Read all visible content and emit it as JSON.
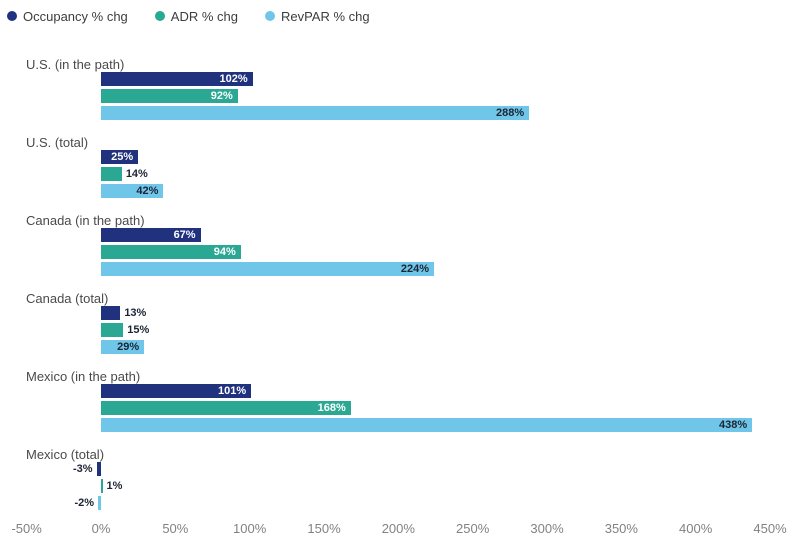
{
  "legend": {
    "items": [
      {
        "label": "Occupancy % chg",
        "color": "#20317d"
      },
      {
        "label": "ADR % chg",
        "color": "#2aa893"
      },
      {
        "label": "RevPAR % chg",
        "color": "#6fc6e9"
      }
    ]
  },
  "chart_data": {
    "type": "bar",
    "orientation": "horizontal",
    "title": "",
    "xlabel": "",
    "ylabel": "",
    "categories": [
      "U.S. (in the path)",
      "U.S. (total)",
      "Canada (in the path)",
      "Canada (total)",
      "Mexico (in the path)",
      "Mexico (total)"
    ],
    "series": [
      {
        "name": "Occupancy % chg",
        "color": "#20317d",
        "values": [
          102,
          25,
          67,
          13,
          101,
          -3
        ]
      },
      {
        "name": "ADR % chg",
        "color": "#2aa893",
        "values": [
          92,
          14,
          94,
          15,
          168,
          1
        ]
      },
      {
        "name": "RevPAR % chg",
        "color": "#6fc6e9",
        "values": [
          288,
          42,
          224,
          29,
          438,
          -2
        ]
      }
    ],
    "value_label_suffix": "%",
    "xlim": [
      -50,
      450
    ],
    "x_ticks": [
      -50,
      0,
      50,
      100,
      150,
      200,
      250,
      300,
      350,
      400,
      450
    ],
    "x_tick_labels": [
      "-50%",
      "0%",
      "50%",
      "100%",
      "150%",
      "200%",
      "250%",
      "300%",
      "350%",
      "400%",
      "450%"
    ],
    "grid": false,
    "legend_position": "top-left",
    "colors": {
      "label_inside_light": "#ffffff",
      "label_dark": "#1c2433",
      "group_label": "#4a4a4a",
      "axis_tick": "#828282"
    }
  }
}
